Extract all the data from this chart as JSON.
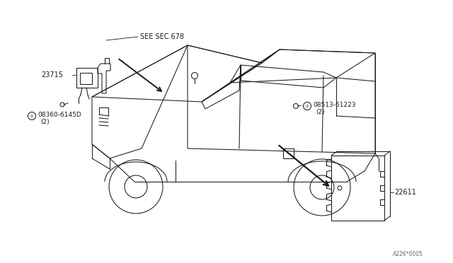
{
  "bg_color": "#ffffff",
  "line_color": "#1a1a1a",
  "fig_width": 6.4,
  "fig_height": 3.72,
  "dpi": 100,
  "footer_text": "A226*0005",
  "labels": {
    "see_sec": "SEE SEC.678",
    "part_23715": "23715",
    "part_08360": "08360-6145D",
    "part_08360_qty": "(2)",
    "part_22611": "22611",
    "part_08513": "08513-61223",
    "part_08513_qty": "(2)"
  }
}
